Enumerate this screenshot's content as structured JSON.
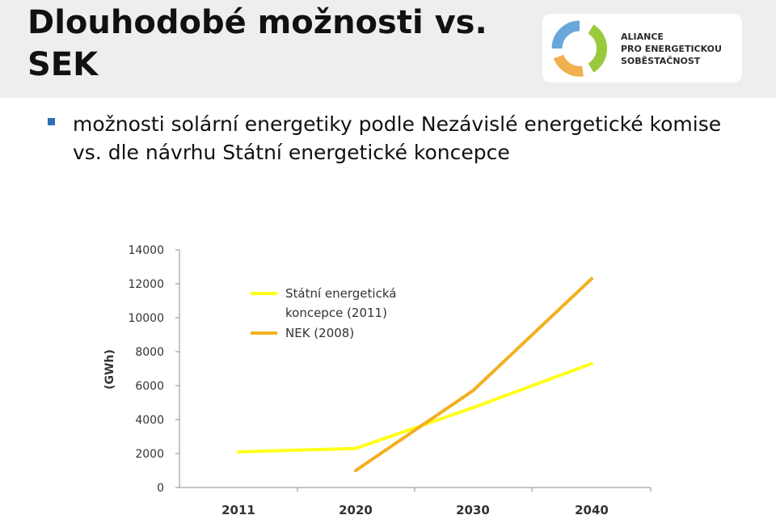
{
  "slide": {
    "title": "Dlouhodobé možnosti vs. SEK",
    "bullet_text": "možnosti solární energetiky podle Nezávislé energetické komise vs. dle návrhu Státní energetické koncepce"
  },
  "logo": {
    "line1": "ALIANCE",
    "line2": "PRO ENERGETICKOU",
    "line3": "SOBĚSTAČNOST",
    "colors": {
      "blue": "#6aa7d8",
      "green": "#9bc93c",
      "orange": "#f0b04e"
    }
  },
  "colors": {
    "bullet": "#2e6fb8",
    "header_bg": "#eeeeee"
  },
  "chart_data": {
    "type": "line",
    "x": [
      2011,
      2020,
      2030,
      2040
    ],
    "ylabel": "(GWh)",
    "ylim": [
      0,
      14000
    ],
    "yticks": [
      0,
      2000,
      4000,
      6000,
      8000,
      10000,
      12000,
      14000
    ],
    "grid": false,
    "legend_position": "top-left",
    "series": [
      {
        "name": "Státní energetická koncepce (2011)",
        "color": "#ffff1a",
        "x": [
          2011,
          2020,
          2030,
          2040
        ],
        "values": [
          2100,
          2300,
          4700,
          7300
        ]
      },
      {
        "name": "NEK (2008)",
        "color": "#f2b01e",
        "x": [
          2020,
          2030,
          2040
        ],
        "values": [
          1000,
          5700,
          12300
        ]
      }
    ]
  }
}
